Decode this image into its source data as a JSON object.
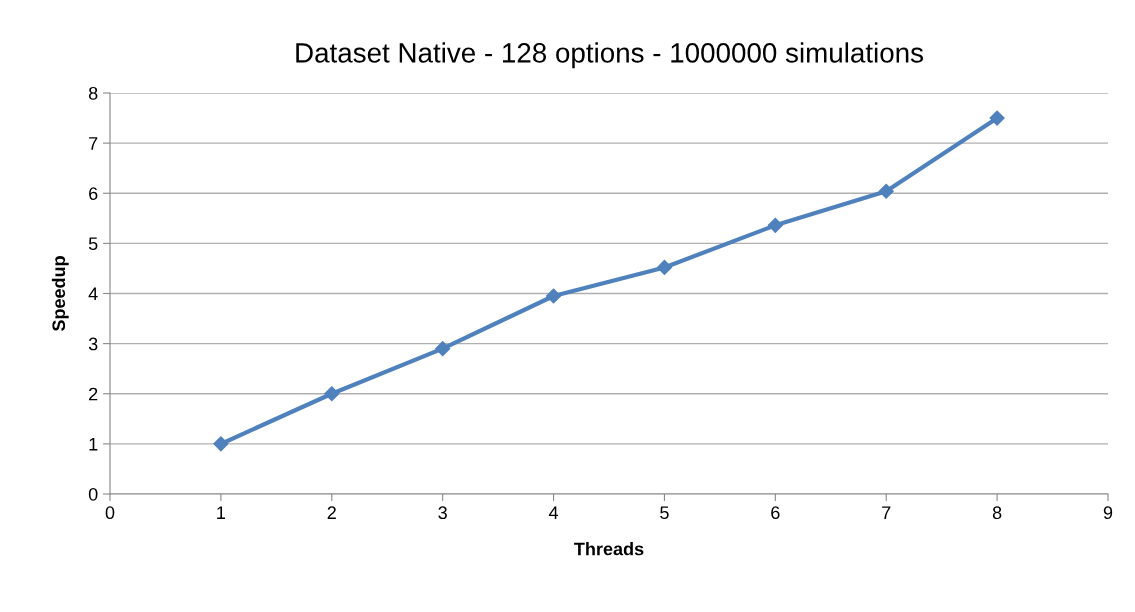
{
  "chart_data": {
    "type": "line",
    "title": "Dataset Native - 128 options - 1000000 simulations",
    "xlabel": "Threads",
    "ylabel": "Speedup",
    "x": [
      1,
      2,
      3,
      4,
      5,
      6,
      7,
      8
    ],
    "series": [
      {
        "color": "#4f81bd",
        "values": [
          1.0,
          2.0,
          2.9,
          3.95,
          4.52,
          5.36,
          6.04,
          7.5
        ]
      }
    ],
    "xlim": [
      0,
      9
    ],
    "xticks": [
      0,
      1,
      2,
      3,
      4,
      5,
      6,
      7,
      8,
      9
    ],
    "ylim": [
      0,
      8
    ],
    "yticks": [
      0,
      1,
      2,
      3,
      4,
      5,
      6,
      7,
      8
    ],
    "grid": "y",
    "legend": false,
    "marker": "diamond",
    "line_style": "solid"
  }
}
